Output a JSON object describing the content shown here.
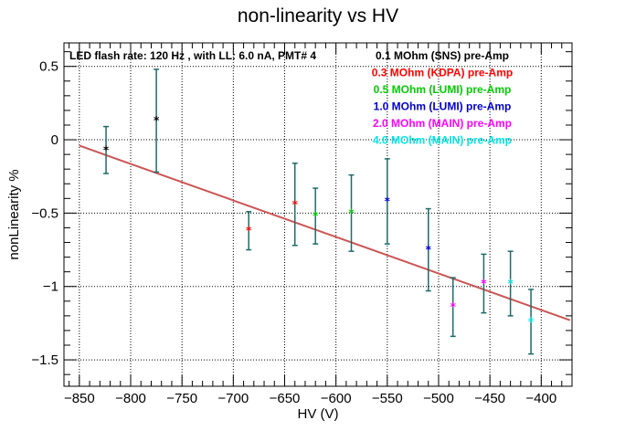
{
  "chart_data": {
    "type": "scatter",
    "title": "non-linearity vs HV",
    "xlabel": "HV (V)",
    "ylabel": "nonLinearity %",
    "xlim": [
      -865,
      -370
    ],
    "ylim": [
      -1.68,
      0.66
    ],
    "x_ticks": [
      -850,
      -800,
      -750,
      -700,
      -650,
      -600,
      -550,
      -500,
      -450,
      -400
    ],
    "x_tick_labels": [
      "−850",
      "−800",
      "−750",
      "−700",
      "−650",
      "−600",
      "−550",
      "−500",
      "−450",
      "−400"
    ],
    "y_ticks": [
      0.5,
      0,
      -0.5,
      -1,
      -1.5
    ],
    "y_tick_labels": [
      "0.5",
      "0",
      "−0.5",
      "−1",
      "−1.5"
    ],
    "grid": true,
    "note": "LED flash rate: 120 Hz , with LL: 6.0 nA, PMT# 4",
    "legend_position": "top-right",
    "fit_line": {
      "x": [
        -850,
        -372
      ],
      "y": [
        -0.04,
        -1.23
      ],
      "color": "#cc5555"
    },
    "error_bar_color": "#1f6b6b",
    "series": [
      {
        "name": "0.1 MOhm (SNS) pre-Amp",
        "color": "#000000",
        "points": [
          {
            "x": -824,
            "y": -0.07,
            "err": 0.16
          },
          {
            "x": -775,
            "y": 0.13,
            "err": 0.35
          }
        ]
      },
      {
        "name": "0.3 MOhm (KDPA) pre-Amp",
        "color": "#ff0000",
        "points": [
          {
            "x": -685,
            "y": -0.62,
            "err": 0.13
          },
          {
            "x": -640,
            "y": -0.44,
            "err": 0.28
          }
        ]
      },
      {
        "name": "0.5 MOhm (LUMI) pre-Amp",
        "color": "#00cc00",
        "points": [
          {
            "x": -620,
            "y": -0.52,
            "err": 0.19
          },
          {
            "x": -585,
            "y": -0.5,
            "err": 0.26
          }
        ]
      },
      {
        "name": "1.0 MOhm (LUMI) pre-Amp",
        "color": "#0000cc",
        "points": [
          {
            "x": -550,
            "y": -0.42,
            "err": 0.29
          },
          {
            "x": -510,
            "y": -0.75,
            "err": 0.28
          }
        ]
      },
      {
        "name": "2.0 MOhm (MAIN) pre-Amp",
        "color": "#ff00ff",
        "points": [
          {
            "x": -486,
            "y": -1.14,
            "err": 0.2
          },
          {
            "x": -456,
            "y": -0.98,
            "err": 0.2
          }
        ]
      },
      {
        "name": "4.0 MOhm (MAIN) pre-Amp",
        "color": "#00e5e5",
        "points": [
          {
            "x": -430,
            "y": -0.98,
            "err": 0.22
          },
          {
            "x": -410,
            "y": -1.24,
            "err": 0.22
          }
        ]
      }
    ]
  }
}
